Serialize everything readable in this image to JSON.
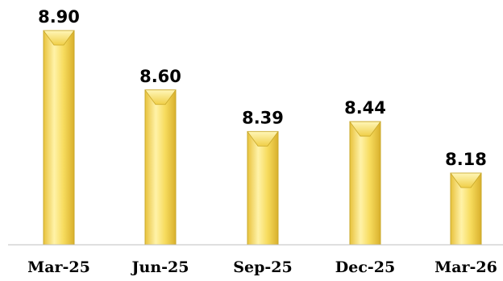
{
  "chart_data": {
    "type": "bar",
    "categories": [
      "Mar-25",
      "Jun-25",
      "Sep-25",
      "Dec-25",
      "Mar-26"
    ],
    "values": [
      8.9,
      8.6,
      8.39,
      8.44,
      8.18
    ],
    "value_labels": [
      "8.90",
      "8.60",
      "8.39",
      "8.44",
      "8.18"
    ],
    "title": "",
    "xlabel": "",
    "ylabel": "",
    "grid": false,
    "bar_color": "#f5d85a",
    "bar_edge_color": "#c9a82a"
  }
}
